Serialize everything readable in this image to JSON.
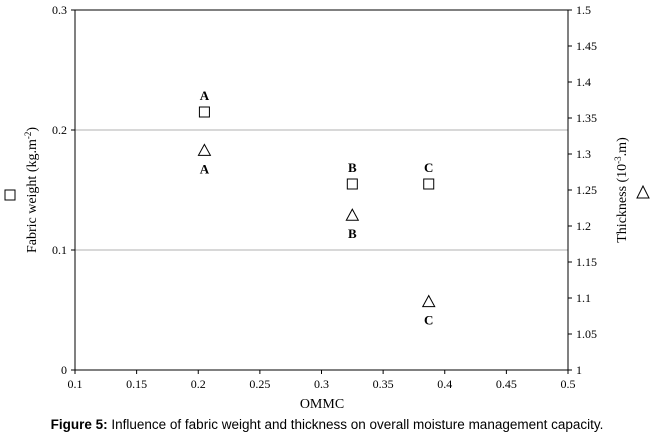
{
  "caption": {
    "label": "Figure 5:",
    "text": "Influence of fabric weight and thickness on overall moisture management capacity."
  },
  "chart_data": {
    "type": "scatter",
    "xlabel": "OMMC",
    "xlim": [
      0.1,
      0.5
    ],
    "x_ticks": [
      "0.1",
      "0.15",
      "0.2",
      "0.25",
      "0.3",
      "0.35",
      "0.4",
      "0.45",
      "0.5"
    ],
    "ylabel_left": "Fabric weight (kg.m",
    "ylabel_left_sup": "-2",
    "ylabel_left_close": ")",
    "ylim_left": [
      0,
      0.3
    ],
    "y_ticks_left": [
      "0",
      "0.1",
      "0.2",
      "0.3"
    ],
    "ylabel_right": "Thickness (10",
    "ylabel_right_sup": "-3",
    "ylabel_right_close": ".m)",
    "ylim_right": [
      1,
      1.5
    ],
    "y_ticks_right": [
      "1",
      "1.05",
      "1.1",
      "1.15",
      "1.2",
      "1.25",
      "1.3",
      "1.35",
      "1.4",
      "1.45",
      "1.5"
    ],
    "grid_y": true,
    "legend_left_symbol": "□",
    "legend_right_symbol": "△",
    "series": [
      {
        "axis": "left",
        "marker": "square",
        "points": [
          {
            "x": 0.205,
            "y": 0.215,
            "label": "A"
          },
          {
            "x": 0.325,
            "y": 0.155,
            "label": "B"
          },
          {
            "x": 0.387,
            "y": 0.155,
            "label": "C"
          }
        ]
      },
      {
        "axis": "right",
        "marker": "triangle",
        "points": [
          {
            "x": 0.205,
            "y": 1.305,
            "label": "A"
          },
          {
            "x": 0.325,
            "y": 1.215,
            "label": "B"
          },
          {
            "x": 0.387,
            "y": 1.095,
            "label": "C"
          }
        ]
      }
    ]
  }
}
